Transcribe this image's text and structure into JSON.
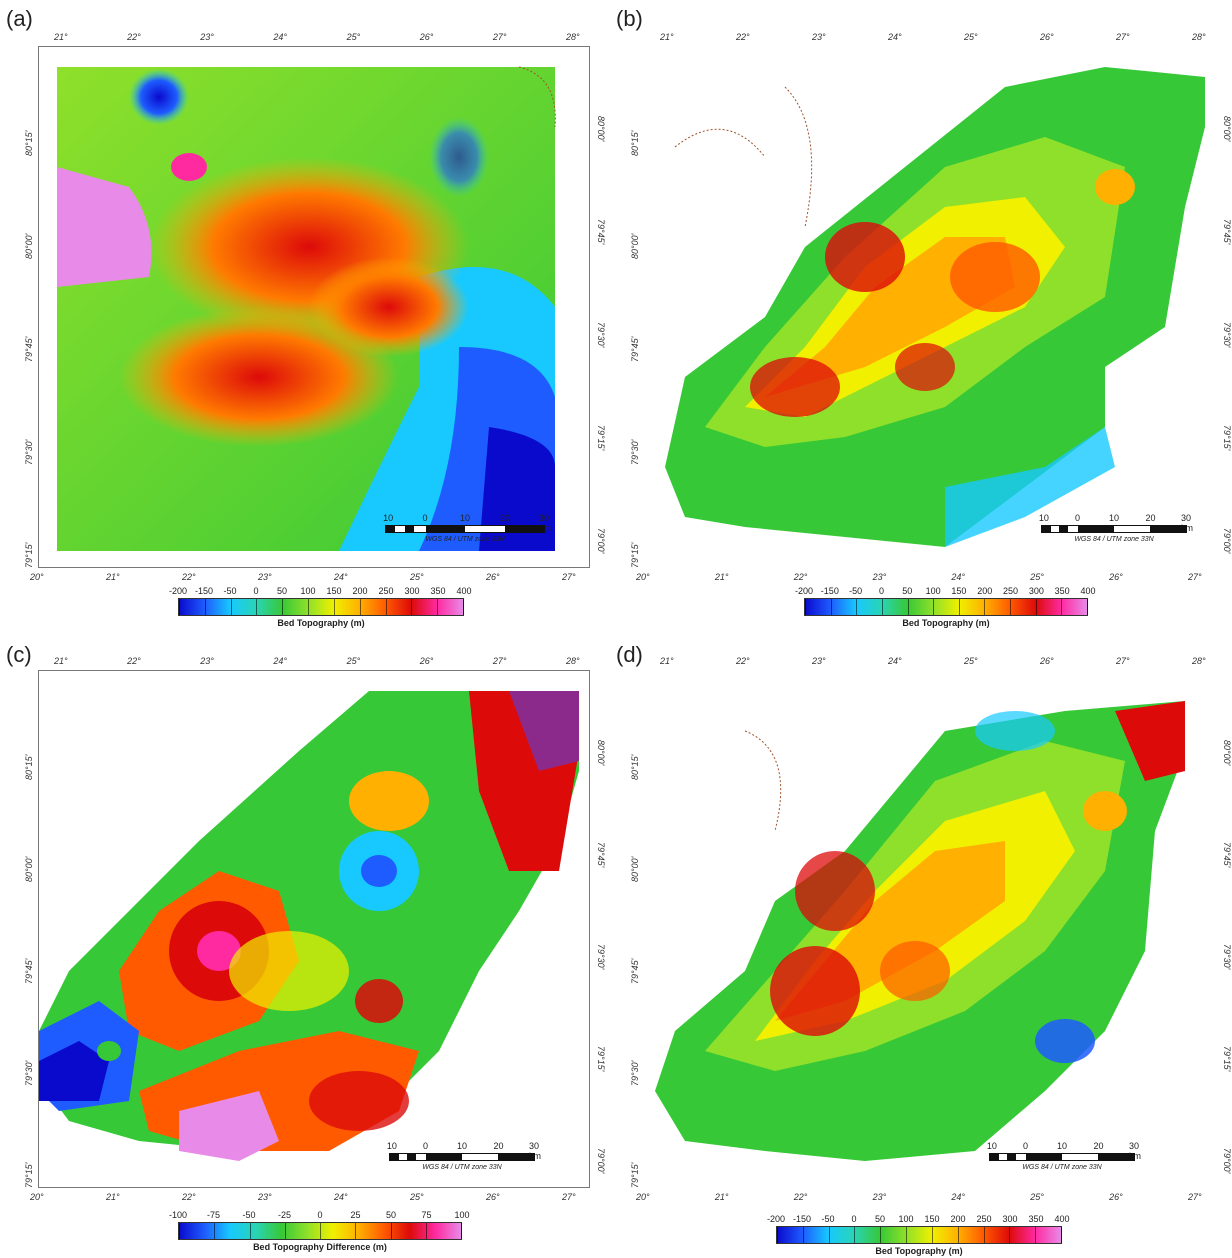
{
  "panels": [
    {
      "id": "a",
      "label": "(a)",
      "top_lon": [
        "21°",
        "22°",
        "23°",
        "24°",
        "25°",
        "26°",
        "27°",
        "28°"
      ],
      "bottom_lon": [
        "20°",
        "21°",
        "22°",
        "23°",
        "24°",
        "25°",
        "26°",
        "27°"
      ],
      "left_lat": [
        "80°15'",
        "80°00'",
        "79°45'",
        "79°30'",
        "79°15'"
      ],
      "right_lat": [
        "80°00'",
        "79°45'",
        "79°30'",
        "79°15'",
        "79°00'"
      ],
      "scale_labels": [
        "10",
        "0",
        "10",
        "20",
        "30 km"
      ],
      "crs": "WGS 84 / UTM zone 33N",
      "colorbar_ticks": [
        "-200",
        "-150",
        "-50",
        "0",
        "50",
        "100",
        "150",
        "200",
        "250",
        "300",
        "350",
        "400"
      ],
      "colorbar_label": "Bed Topography (m)"
    },
    {
      "id": "b",
      "label": "(b)",
      "top_lon": [
        "21°",
        "22°",
        "23°",
        "24°",
        "25°",
        "26°",
        "27°",
        "28°"
      ],
      "bottom_lon": [
        "20°",
        "21°",
        "22°",
        "23°",
        "24°",
        "25°",
        "26°",
        "27°"
      ],
      "left_lat": [
        "80°15'",
        "80°00'",
        "79°45'",
        "79°30'",
        "79°15'"
      ],
      "right_lat": [
        "80°00'",
        "79°45'",
        "79°30'",
        "79°15'",
        "79°00'"
      ],
      "scale_labels": [
        "10",
        "0",
        "10",
        "20",
        "30 km"
      ],
      "crs": "WGS 84 / UTM zone 33N",
      "colorbar_ticks": [
        "-200",
        "-150",
        "-50",
        "0",
        "50",
        "100",
        "150",
        "200",
        "250",
        "300",
        "350",
        "400"
      ],
      "colorbar_label": "Bed Topography (m)"
    },
    {
      "id": "c",
      "label": "(c)",
      "top_lon": [
        "21°",
        "22°",
        "23°",
        "24°",
        "25°",
        "26°",
        "27°",
        "28°"
      ],
      "bottom_lon": [
        "20°",
        "21°",
        "22°",
        "23°",
        "24°",
        "25°",
        "26°",
        "27°"
      ],
      "left_lat": [
        "80°15'",
        "80°00'",
        "79°45'",
        "79°30'",
        "79°15'"
      ],
      "right_lat": [
        "80°00'",
        "79°45'",
        "79°30'",
        "79°15'",
        "79°00'"
      ],
      "scale_labels": [
        "10",
        "0",
        "10",
        "20",
        "30 km"
      ],
      "crs": "WGS 84 / UTM zone 33N",
      "colorbar_ticks": [
        "-100",
        "-75",
        "-50",
        "-25",
        "0",
        "25",
        "50",
        "75",
        "100"
      ],
      "colorbar_label": "Bed Topography Difference (m)"
    },
    {
      "id": "d",
      "label": "(d)",
      "top_lon": [
        "21°",
        "22°",
        "23°",
        "24°",
        "25°",
        "26°",
        "27°",
        "28°"
      ],
      "bottom_lon": [
        "20°",
        "21°",
        "22°",
        "23°",
        "24°",
        "25°",
        "26°",
        "27°"
      ],
      "left_lat": [
        "80°15'",
        "80°00'",
        "79°45'",
        "79°30'",
        "79°15'"
      ],
      "right_lat": [
        "80°00'",
        "79°45'",
        "79°30'",
        "79°15'",
        "79°00'"
      ],
      "scale_labels": [
        "10",
        "0",
        "10",
        "20",
        "30 km"
      ],
      "crs": "WGS 84 / UTM zone 33N",
      "colorbar_ticks": [
        "-200",
        "-150",
        "-50",
        "0",
        "50",
        "100",
        "150",
        "200",
        "250",
        "300",
        "350",
        "400"
      ],
      "colorbar_label": "Bed Topography (m)"
    }
  ],
  "colors": {
    "ramp": [
      "#0a0acd",
      "#1e5cff",
      "#17c9ff",
      "#2ad4b4",
      "#37c837",
      "#8fe02a",
      "#f0f000",
      "#ffb000",
      "#ff5a00",
      "#dd0a0a",
      "#ff2aa0",
      "#e88ae8"
    ],
    "frame": "#777777",
    "coastline": "#a0522d"
  }
}
